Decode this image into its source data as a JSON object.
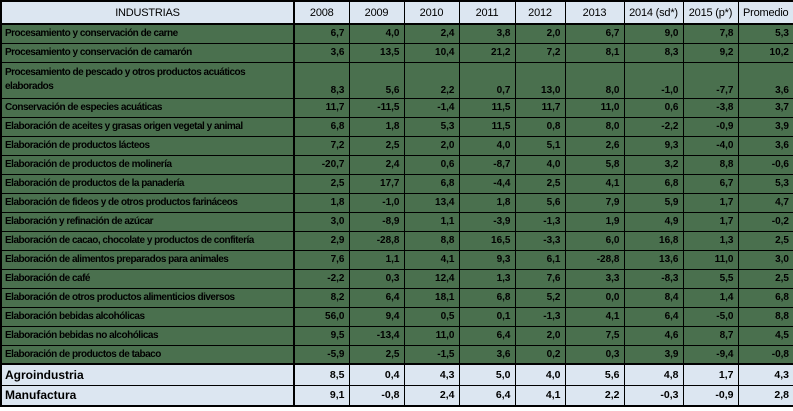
{
  "colors": {
    "row_green": "#4a704e",
    "header_footer_blue": "#dce6f1",
    "border": "#000000",
    "text": "#000000"
  },
  "table": {
    "header": {
      "industry_col": "INDUSTRIAS",
      "year_cols": [
        "2008",
        "2009",
        "2010",
        "2011",
        "2012",
        "2013",
        "2014 (sd*)",
        "2015 (p*)",
        "Promedio"
      ]
    },
    "rows": [
      {
        "label": "Procesamiento y conservación de carne",
        "values": [
          "6,7",
          "4,0",
          "2,4",
          "3,8",
          "2,0",
          "6,7",
          "9,0",
          "7,8",
          "5,3"
        ]
      },
      {
        "label": "Procesamiento y conservación de camarón",
        "values": [
          "3,6",
          "13,5",
          "10,4",
          "21,2",
          "7,2",
          "8,1",
          "8,3",
          "9,2",
          "10,2"
        ]
      },
      {
        "label": "Procesamiento de pescado y otros productos acuáticos elaborados",
        "multiline": true,
        "values": [
          "8,3",
          "5,6",
          "2,2",
          "0,7",
          "13,0",
          "8,0",
          "-1,0",
          "-7,7",
          "3,6"
        ]
      },
      {
        "label": "Conservación de especies acuáticas",
        "values": [
          "11,7",
          "-11,5",
          "-1,4",
          "11,5",
          "11,7",
          "11,0",
          "0,6",
          "-3,8",
          "3,7"
        ]
      },
      {
        "label": "Elaboración de aceites y grasas origen vegetal y animal",
        "values": [
          "6,8",
          "1,8",
          "5,3",
          "11,5",
          "0,8",
          "8,0",
          "-2,2",
          "-0,9",
          "3,9"
        ]
      },
      {
        "label": "Elaboración de productos lácteos",
        "values": [
          "7,2",
          "2,5",
          "2,0",
          "4,0",
          "5,1",
          "2,6",
          "9,3",
          "-4,0",
          "3,6"
        ]
      },
      {
        "label": "Elaboración de productos de molinería",
        "values": [
          "-20,7",
          "2,4",
          "0,6",
          "-8,7",
          "4,0",
          "5,8",
          "3,2",
          "8,8",
          "-0,6"
        ]
      },
      {
        "label": "Elaboración de productos de la panadería",
        "values": [
          "2,5",
          "17,7",
          "6,8",
          "-4,4",
          "2,5",
          "4,1",
          "6,8",
          "6,7",
          "5,3"
        ]
      },
      {
        "label": "Elaboración de  fideos y de otros productos farináceos",
        "values": [
          "1,8",
          "-1,0",
          "13,4",
          "1,8",
          "5,6",
          "7,9",
          "5,9",
          "1,7",
          "4,7"
        ]
      },
      {
        "label": "Elaboración y refinación de azúcar",
        "values": [
          "3,0",
          "-8,9",
          "1,1",
          "-3,9",
          "-1,3",
          "1,9",
          "4,9",
          "1,7",
          "-0,2"
        ]
      },
      {
        "label": "Elaboración de cacao, chocolate y productos de confitería",
        "values": [
          "2,9",
          "-28,8",
          "8,8",
          "16,5",
          "-3,3",
          "6,0",
          "16,8",
          "1,3",
          "2,5"
        ]
      },
      {
        "label": "Elaboración de alimentos preparados para animales",
        "values": [
          "7,6",
          "1,1",
          "4,1",
          "9,3",
          "6,1",
          "-28,8",
          "13,6",
          "11,0",
          "3,0"
        ]
      },
      {
        "label": "Elaboración de café",
        "values": [
          "-2,2",
          "0,3",
          "12,4",
          "1,3",
          "7,6",
          "3,3",
          "-8,3",
          "5,5",
          "2,5"
        ]
      },
      {
        "label": "Elaboración de otros productos alimenticios diversos",
        "values": [
          "8,2",
          "6,4",
          "18,1",
          "6,8",
          "5,2",
          "0,0",
          "8,4",
          "1,4",
          "6,8"
        ]
      },
      {
        "label": "Elaboración bebidas alcohólicas",
        "values": [
          "56,0",
          "9,4",
          "0,5",
          "0,1",
          "-1,3",
          "4,1",
          "6,4",
          "-5,0",
          "8,8"
        ]
      },
      {
        "label": "Elaboración bebidas no alcohólicas",
        "values": [
          "9,5",
          "-13,4",
          "11,0",
          "6,4",
          "2,0",
          "7,5",
          "4,6",
          "8,7",
          "4,5"
        ]
      },
      {
        "label": "Elaboración de productos de tabaco",
        "values": [
          "-5,9",
          "2,5",
          "-1,5",
          "3,6",
          "0,2",
          "0,3",
          "3,9",
          "-9,4",
          "-0,8"
        ]
      }
    ],
    "summary_rows": [
      {
        "label": "Agroindustria",
        "values": [
          "8,5",
          "0,4",
          "4,3",
          "5,0",
          "4,0",
          "5,6",
          "4,8",
          "1,7",
          "4,3"
        ]
      },
      {
        "label": "Manufactura",
        "values": [
          "9,1",
          "-0,8",
          "2,4",
          "6,4",
          "4,1",
          "2,2",
          "-0,3",
          "-0,9",
          "2,8"
        ]
      }
    ]
  }
}
